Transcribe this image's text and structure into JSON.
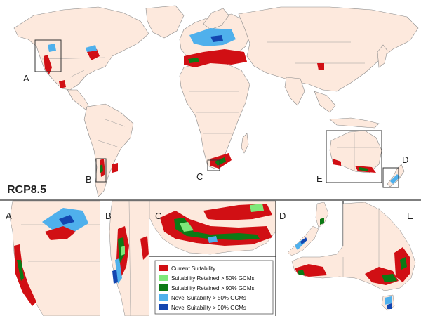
{
  "scenario_label": "RCP8.5",
  "main_map_box_labels": {
    "A": "A",
    "B": "B",
    "C": "C",
    "D": "D",
    "E": "E"
  },
  "panel_labels": {
    "A": "A",
    "B": "B",
    "C": "C",
    "D": "D",
    "E": "E"
  },
  "legend": {
    "items": [
      {
        "label": "Current Suitability",
        "color": "#d10f14"
      },
      {
        "label": "Suitability Retained > 50% GCMs",
        "color": "#7ee87a"
      },
      {
        "label": "Suitability Retained > 90% GCMs",
        "color": "#0c7a15"
      },
      {
        "label": "Novel Suitability > 50% GCMs",
        "color": "#4fb0ec"
      },
      {
        "label": "Novel Suitability > 90% GCMs",
        "color": "#1346b0"
      }
    ]
  },
  "colors": {
    "land": "#fde9dd",
    "border": "#7a7a7a",
    "frame": "#333333",
    "water": "#ffffff"
  }
}
